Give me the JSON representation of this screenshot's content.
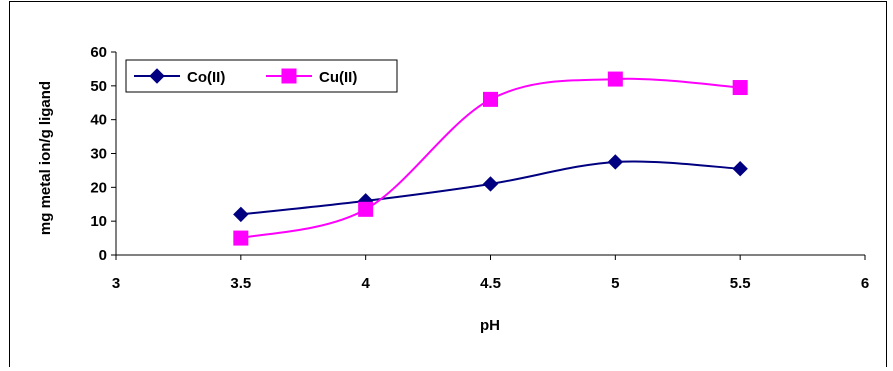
{
  "chart_data": {
    "type": "line",
    "xlabel": "pH",
    "ylabel": "mg metal ion/g ligand",
    "xlim": [
      3,
      6
    ],
    "ylim": [
      0,
      60
    ],
    "xticks": [
      "3",
      "3.5",
      "4",
      "4.5",
      "5",
      "5.5",
      "6"
    ],
    "yticks": [
      "0",
      "10",
      "20",
      "30",
      "40",
      "50",
      "60"
    ],
    "grid": false,
    "smooth": true,
    "legend": "top-left",
    "series": [
      {
        "name": "Co(II)",
        "color": "#000080",
        "marker": "diamond",
        "x": [
          3.5,
          4,
          4.5,
          5,
          5.5
        ],
        "y": [
          12,
          16,
          21,
          27.5,
          25.5
        ]
      },
      {
        "name": "Cu(II)",
        "color": "#ff00ff",
        "marker": "square",
        "x": [
          3.5,
          4,
          4.5,
          5,
          5.5
        ],
        "y": [
          5,
          13.5,
          46,
          52,
          49.5
        ]
      }
    ]
  }
}
